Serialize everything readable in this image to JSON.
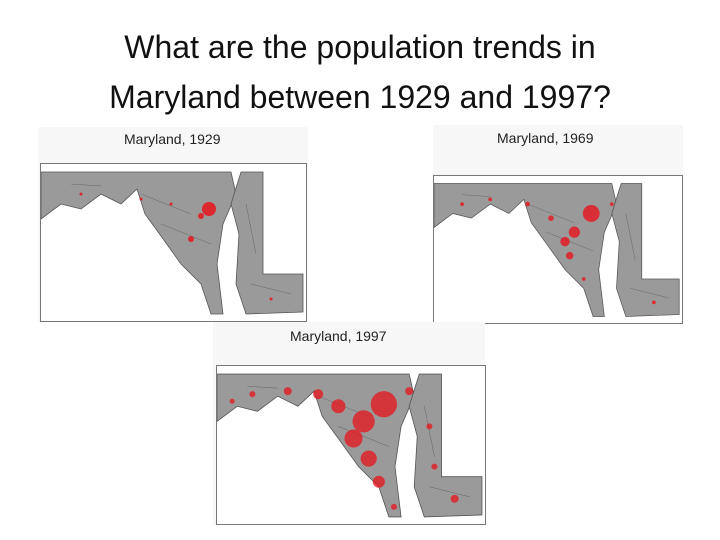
{
  "title": "What are the population trends in Maryland between 1929 and 1997?",
  "maps": [
    {
      "caption": "Maryland, 1929"
    },
    {
      "caption": "Maryland, 1969"
    },
    {
      "caption": "Maryland, 1997"
    }
  ]
}
